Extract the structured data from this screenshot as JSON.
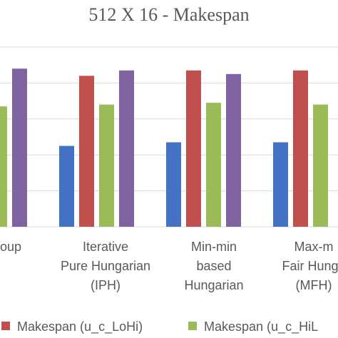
{
  "chart_data": {
    "type": "bar",
    "title": "512 X 16 - Makespan",
    "categories": [
      [
        "oup"
      ],
      [
        "Iterative",
        "Pure Hungarian",
        "(IPH)"
      ],
      [
        "Min-min",
        "based",
        "Hungarian"
      ],
      [
        "Max-m",
        "Fair Hunga",
        "(MFH)"
      ]
    ],
    "series": [
      {
        "name": "",
        "color": "#4472C4",
        "values": [
          null,
          45,
          47,
          47
        ]
      },
      {
        "name": "Makespan (u_c_LoHi)",
        "color": "#C0504D",
        "values": [
          null,
          84,
          87,
          87
        ]
      },
      {
        "name": "Makespan (u_c_HiL",
        "color": "#9BBB59",
        "values": [
          67,
          68,
          69,
          68
        ]
      },
      {
        "name": "",
        "color": "#8064A2",
        "values": [
          88,
          87,
          85,
          null
        ]
      }
    ],
    "ylim": [
      0,
      100
    ],
    "gridlines": [
      0,
      20,
      40,
      60,
      80,
      100
    ],
    "grid": true,
    "legend_position": "bottom"
  }
}
